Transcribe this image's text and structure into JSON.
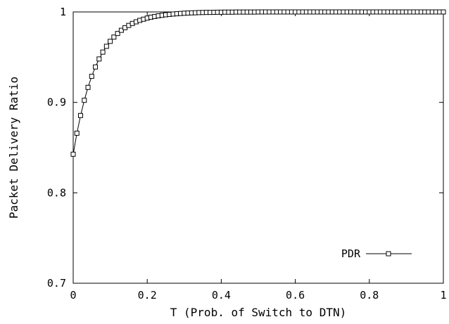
{
  "chart_data": {
    "type": "line",
    "title": "",
    "xlabel": "T (Prob. of Switch to DTN)",
    "ylabel": "Packet Delivery Ratio",
    "xlim": [
      0,
      1
    ],
    "ylim": [
      0.7,
      1
    ],
    "x_ticks": [
      0,
      0.2,
      0.4,
      0.6,
      0.8,
      1
    ],
    "x_tick_labels": [
      "0",
      "0.2",
      "0.4",
      "0.6",
      "0.8",
      "1"
    ],
    "y_ticks": [
      0.7,
      0.8,
      0.9,
      1
    ],
    "y_tick_labels": [
      "0.7",
      "0.8",
      "0.9",
      "1"
    ],
    "grid": false,
    "legend_position": "bottom-right",
    "series": [
      {
        "name": "PDR",
        "marker": "square",
        "color": "#000000",
        "x": [
          0,
          0.01,
          0.02,
          0.03,
          0.04,
          0.05,
          0.06,
          0.07,
          0.08,
          0.09,
          0.1,
          0.11,
          0.12,
          0.13,
          0.14,
          0.15,
          0.16,
          0.17,
          0.18,
          0.19,
          0.2,
          0.21,
          0.22,
          0.23,
          0.24,
          0.25,
          0.26,
          0.27,
          0.28,
          0.29,
          0.3,
          0.31,
          0.32,
          0.33,
          0.34,
          0.35,
          0.36,
          0.37,
          0.38,
          0.39,
          0.4,
          0.41,
          0.42,
          0.43,
          0.44,
          0.45,
          0.46,
          0.47,
          0.48,
          0.49,
          0.5,
          0.51,
          0.52,
          0.53,
          0.54,
          0.55,
          0.56,
          0.57,
          0.58,
          0.59,
          0.6,
          0.61,
          0.62,
          0.63,
          0.64,
          0.65,
          0.66,
          0.67,
          0.68,
          0.69,
          0.7,
          0.71,
          0.72,
          0.73,
          0.74,
          0.75,
          0.76,
          0.77,
          0.78,
          0.79,
          0.8,
          0.81,
          0.82,
          0.83,
          0.84,
          0.85,
          0.86,
          0.87,
          0.88,
          0.89,
          0.9,
          0.91,
          0.92,
          0.93,
          0.94,
          0.95,
          0.96,
          0.97,
          0.98,
          0.99,
          1
        ],
        "y": [
          0.8427,
          0.8659,
          0.8855,
          0.9023,
          0.9166,
          0.9288,
          0.9392,
          0.948,
          0.9556,
          0.962,
          0.9675,
          0.9722,
          0.9762,
          0.9797,
          0.9826,
          0.9851,
          0.9873,
          0.9891,
          0.9907,
          0.992,
          0.9932,
          0.9942,
          0.995,
          0.9957,
          0.9963,
          0.9969,
          0.9973,
          0.9977,
          0.998,
          0.9983,
          0.9986,
          0.9988,
          0.999,
          0.9991,
          0.9993,
          0.9994,
          0.9995,
          0.9995,
          0.9996,
          0.9997,
          0.9997,
          0.9998,
          0.9998,
          0.9998,
          0.9999,
          0.9999,
          0.9999,
          0.9999,
          0.9999,
          0.9999,
          1.0,
          1.0,
          1.0,
          1.0,
          1.0,
          1.0,
          1.0,
          1.0,
          1.0,
          1.0,
          1.0,
          1.0,
          1.0,
          1.0,
          1.0,
          1.0,
          1.0,
          1.0,
          1.0,
          1.0,
          1.0,
          1.0,
          1.0,
          1.0,
          1.0,
          1.0,
          1.0,
          1.0,
          1.0,
          1.0,
          1.0,
          1.0,
          1.0,
          1.0,
          1.0,
          1.0,
          1.0,
          1.0,
          1.0,
          1.0,
          1.0,
          1.0,
          1.0,
          1.0,
          1.0,
          1.0,
          1.0,
          1.0,
          1.0,
          1.0,
          1.0
        ]
      }
    ]
  }
}
